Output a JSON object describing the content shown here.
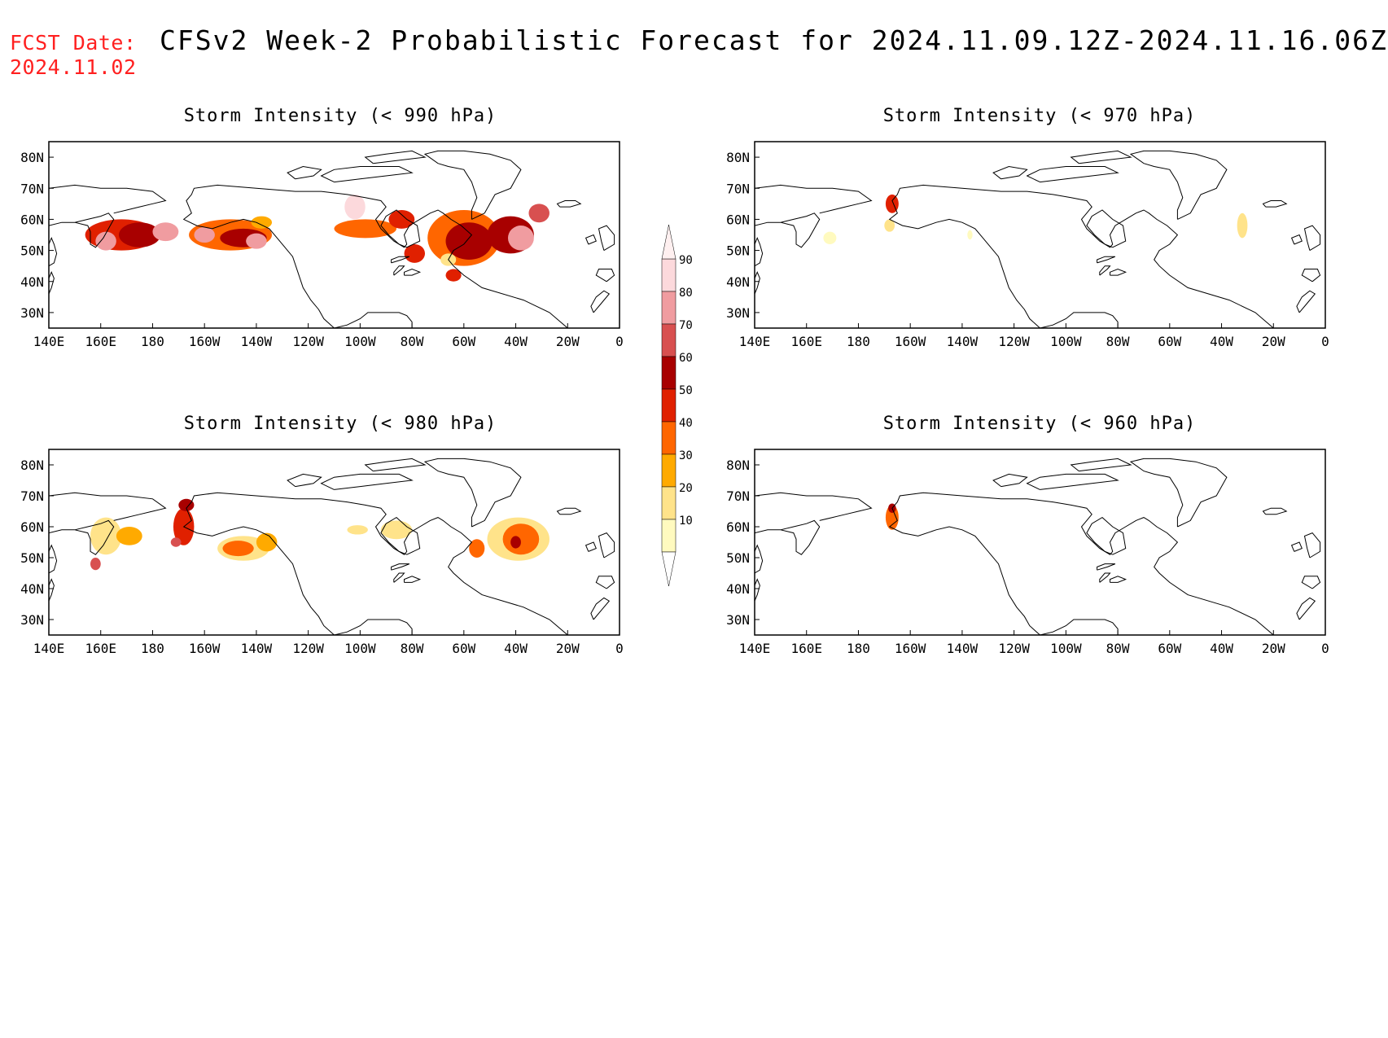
{
  "header": {
    "fcst_label": "FCST Date:",
    "fcst_date": "2024.11.02",
    "title": "CFSv2 Week-2 Probabilistic Forecast for 2024.11.09.12Z-2024.11.16.06Z"
  },
  "axes": {
    "lon_labels": [
      "140E",
      "160E",
      "180",
      "160W",
      "140W",
      "120W",
      "100W",
      "80W",
      "60W",
      "40W",
      "20W",
      "0"
    ],
    "lat_labels": [
      "80N",
      "70N",
      "60N",
      "50N",
      "40N",
      "30N"
    ]
  },
  "colorbar": {
    "levels": [
      "10",
      "20",
      "30",
      "40",
      "50",
      "60",
      "70",
      "80",
      "90"
    ],
    "colors": [
      "#fffabf",
      "#ffe38a",
      "#ffaa00",
      "#ff6600",
      "#e02000",
      "#a80000",
      "#d85050",
      "#f09ca0",
      "#fcd9dc"
    ]
  },
  "panels": [
    {
      "title": "Storm Intensity (< 990 hPa)"
    },
    {
      "title": "Storm Intensity (< 970 hPa)"
    },
    {
      "title": "Storm Intensity (< 980 hPa)"
    },
    {
      "title": "Storm Intensity (< 960 hPa)"
    }
  ],
  "blobs": [
    [
      {
        "lon": 168,
        "lat": 55,
        "rx": 14,
        "ry": 5,
        "c": 4
      },
      {
        "lon": 175,
        "lat": 55,
        "rx": 8,
        "ry": 4,
        "c": 5
      },
      {
        "lon": 162,
        "lat": 53,
        "rx": 4,
        "ry": 3,
        "c": 7
      },
      {
        "lon": 185,
        "lat": 56,
        "rx": 5,
        "ry": 3,
        "c": 7
      },
      {
        "lon": 210,
        "lat": 55,
        "rx": 16,
        "ry": 5,
        "c": 3
      },
      {
        "lon": 215,
        "lat": 54,
        "rx": 9,
        "ry": 3,
        "c": 5
      },
      {
        "lon": 220,
        "lat": 53,
        "rx": 4,
        "ry": 2.5,
        "c": 7
      },
      {
        "lon": 200,
        "lat": 55,
        "rx": 4,
        "ry": 2.5,
        "c": 7
      },
      {
        "lon": 222,
        "lat": 59,
        "rx": 4,
        "ry": 2,
        "c": 2
      },
      {
        "lon": 258,
        "lat": 64,
        "rx": 4,
        "ry": 4,
        "c": 8
      },
      {
        "lon": 262,
        "lat": 57,
        "rx": 12,
        "ry": 3,
        "c": 3
      },
      {
        "lon": 276,
        "lat": 60,
        "rx": 5,
        "ry": 3,
        "c": 4
      },
      {
        "lon": 281,
        "lat": 49,
        "rx": 4,
        "ry": 3,
        "c": 4
      },
      {
        "lon": 300,
        "lat": 54,
        "rx": 14,
        "ry": 9,
        "c": 3
      },
      {
        "lon": 302,
        "lat": 53,
        "rx": 9,
        "ry": 6,
        "c": 5
      },
      {
        "lon": 318,
        "lat": 55,
        "rx": 9,
        "ry": 6,
        "c": 5
      },
      {
        "lon": 322,
        "lat": 54,
        "rx": 5,
        "ry": 4,
        "c": 7
      },
      {
        "lon": 329,
        "lat": 62,
        "rx": 4,
        "ry": 3,
        "c": 6
      },
      {
        "lon": 296,
        "lat": 42,
        "rx": 3,
        "ry": 2,
        "c": 4
      },
      {
        "lon": 294,
        "lat": 47,
        "rx": 3,
        "ry": 2,
        "c": 1
      }
    ],
    [
      {
        "lon": 193,
        "lat": 65,
        "rx": 2.5,
        "ry": 3,
        "c": 4
      },
      {
        "lon": 192,
        "lat": 58,
        "rx": 2,
        "ry": 2,
        "c": 1
      },
      {
        "lon": 169,
        "lat": 54,
        "rx": 2.5,
        "ry": 2,
        "c": 0
      },
      {
        "lon": 223,
        "lat": 55,
        "rx": 1,
        "ry": 1.5,
        "c": 0
      },
      {
        "lon": 328,
        "lat": 58,
        "rx": 2,
        "ry": 4,
        "c": 1
      }
    ],
    [
      {
        "lon": 162,
        "lat": 57,
        "rx": 6,
        "ry": 6,
        "c": 1
      },
      {
        "lon": 158,
        "lat": 48,
        "rx": 2,
        "ry": 2,
        "c": 6
      },
      {
        "lon": 171,
        "lat": 57,
        "rx": 5,
        "ry": 3,
        "c": 2
      },
      {
        "lon": 192,
        "lat": 60,
        "rx": 4,
        "ry": 6,
        "c": 4
      },
      {
        "lon": 189,
        "lat": 55,
        "rx": 2,
        "ry": 1.5,
        "c": 6
      },
      {
        "lon": 193,
        "lat": 67,
        "rx": 3,
        "ry": 2,
        "c": 5
      },
      {
        "lon": 215,
        "lat": 53,
        "rx": 10,
        "ry": 4,
        "c": 1
      },
      {
        "lon": 213,
        "lat": 53,
        "rx": 6,
        "ry": 2.5,
        "c": 3
      },
      {
        "lon": 224,
        "lat": 55,
        "rx": 4,
        "ry": 3,
        "c": 2
      },
      {
        "lon": 259,
        "lat": 59,
        "rx": 4,
        "ry": 1.5,
        "c": 1
      },
      {
        "lon": 274,
        "lat": 59,
        "rx": 6,
        "ry": 3,
        "c": 1
      },
      {
        "lon": 321,
        "lat": 56,
        "rx": 12,
        "ry": 7,
        "c": 1
      },
      {
        "lon": 322,
        "lat": 56,
        "rx": 7,
        "ry": 5,
        "c": 3
      },
      {
        "lon": 320,
        "lat": 55,
        "rx": 2,
        "ry": 2,
        "c": 5
      },
      {
        "lon": 305,
        "lat": 53,
        "rx": 3,
        "ry": 3,
        "c": 3
      }
    ],
    [
      {
        "lon": 193,
        "lat": 63,
        "rx": 2.5,
        "ry": 4,
        "c": 3
      },
      {
        "lon": 193,
        "lat": 66,
        "rx": 1.5,
        "ry": 1.5,
        "c": 5
      }
    ]
  ]
}
